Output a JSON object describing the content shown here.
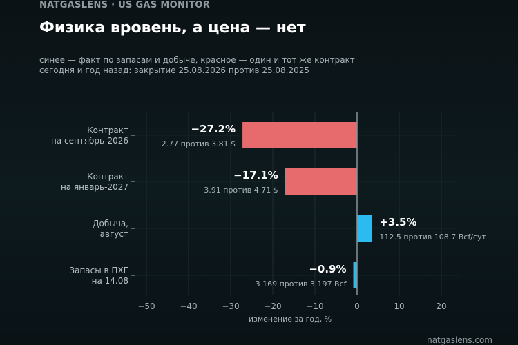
{
  "header": {
    "kicker": "NATGASLENS · US GAS MONITOR",
    "title": "Физика вровень, а цена — нет",
    "subtitle_line1": "синее — факт по запасам и добыче, красное — один и тот же контракт",
    "subtitle_line2": "сегодня и год назад: закрытие 25.08.2026 против 25.08.2025"
  },
  "footer": {
    "source": "natgaslens.com"
  },
  "colors": {
    "price": "#e76a6c",
    "physical": "#2bbbf0",
    "zero_line": "#8a9398",
    "grid": "#1f2b30",
    "tick_text": "#a7b2b7",
    "label_text": "#b6c0c4",
    "value_text": "#ffffff",
    "detail_text": "#a7b2b7"
  },
  "chart_data": {
    "type": "bar",
    "orientation": "horizontal",
    "xlabel": "изменение за год, %",
    "xlim": [
      -55,
      24
    ],
    "xticks": [
      -50,
      -40,
      -30,
      -20,
      -10,
      0,
      10,
      20
    ],
    "xtick_labels": [
      "−50",
      "−40",
      "−30",
      "−20",
      "−10",
      "0",
      "10",
      "20"
    ],
    "grid": true,
    "bars": [
      {
        "label_line1": "Контракт",
        "label_line2": "на сентябрь-2026",
        "value": -27.2,
        "value_label": "−27.2%",
        "detail": "2.77 против 3.81 $",
        "kind": "price"
      },
      {
        "label_line1": "Контракт",
        "label_line2": "на январь-2027",
        "value": -17.1,
        "value_label": "−17.1%",
        "detail": "3.91 против 4.71 $",
        "kind": "price"
      },
      {
        "label_line1": "Добыча,",
        "label_line2": "август",
        "value": 3.5,
        "value_label": "+3.5%",
        "detail": "112.5 против 108.7 Bcf/сут",
        "kind": "physical"
      },
      {
        "label_line1": "Запасы в ПХГ",
        "label_line2": "на 14.08",
        "value": -0.9,
        "value_label": "−0.9%",
        "detail": "3 169 против 3 197 Bcf",
        "kind": "physical"
      }
    ]
  }
}
